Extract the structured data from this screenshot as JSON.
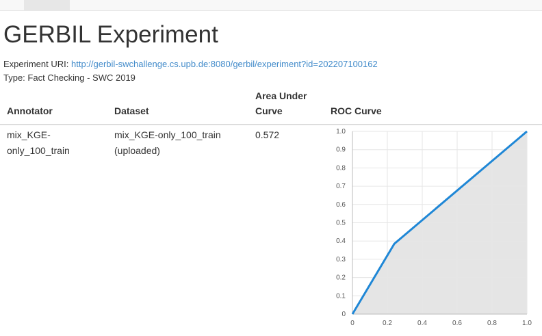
{
  "page": {
    "title": "GERBIL Experiment",
    "experiment_uri_label": "Experiment URI:",
    "experiment_uri": "http://gerbil-swchallenge.cs.upb.de:8080/gerbil/experiment?id=202207100162",
    "type_line": "Type: Fact Checking - SWC 2019"
  },
  "table": {
    "headers": {
      "annotator": "Annotator",
      "dataset": "Dataset",
      "auc": "Area Under Curve",
      "roc": "ROC Curve"
    },
    "rows": [
      {
        "annotator": "mix_KGE-only_100_train",
        "dataset": "mix_KGE-only_100_train (uploaded)",
        "auc": "0.572"
      }
    ]
  },
  "chart_data": {
    "type": "area",
    "x": [
      0,
      0.24,
      1.0
    ],
    "y": [
      0,
      0.385,
      1.0
    ],
    "xlim": [
      0,
      1
    ],
    "ylim": [
      0,
      1
    ],
    "x_ticks": [
      "0",
      "0.2",
      "0.4",
      "0.6",
      "0.8",
      "1.0"
    ],
    "y_ticks": [
      "0",
      "0.1",
      "0.2",
      "0.3",
      "0.4",
      "0.5",
      "0.6",
      "0.7",
      "0.8",
      "0.9",
      "1.0"
    ],
    "grid": true,
    "line_color": "#1f87d6",
    "fill_color": "#e5e5e5"
  }
}
